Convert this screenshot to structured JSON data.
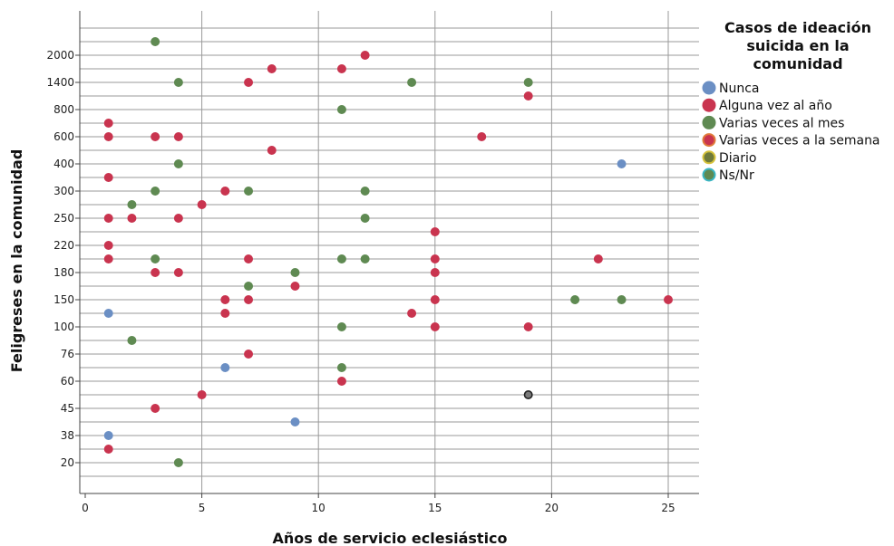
{
  "chart_data": {
    "type": "scatter",
    "xlabel": "Años de servicio eclesiástico",
    "ylabel": "Feligreses en la comunidad",
    "xlim": [
      0,
      26
    ],
    "x_ticks": [
      "0",
      "5",
      "10",
      "15",
      "20",
      "25"
    ],
    "y_scale": "categorical",
    "y_tick_labels": [
      "20",
      "38",
      "45",
      "60",
      "76",
      "100",
      "150",
      "180",
      "220",
      "250",
      "300",
      "400",
      "600",
      "800",
      "1400",
      "2000"
    ],
    "grid": true,
    "legend": {
      "position": "right",
      "title_lines": [
        "Casos de ideación",
        "suicida en la",
        "comunidad"
      ],
      "entries": [
        {
          "label": "Nunca",
          "fill": "#6b8fc4",
          "stroke": "#6b8fc4"
        },
        {
          "label": "Alguna vez al año",
          "fill": "#c9344f",
          "stroke": "#c9344f"
        },
        {
          "label": "Varias veces al mes",
          "fill": "#5f8a52",
          "stroke": "#5f8a52"
        },
        {
          "label": "Varias veces a la semana",
          "fill": "#c9344f",
          "stroke": "#e07a3a"
        },
        {
          "label": "Diario",
          "fill": "#6f7a3a",
          "stroke": "#d6c23a"
        },
        {
          "label": "Ns/Nr",
          "fill": "#5f8a52",
          "stroke": "#3ab6c4"
        }
      ]
    },
    "series": [
      {
        "name": "Nunca",
        "points": [
          {
            "x": 1,
            "y": 117
          },
          {
            "x": 1,
            "y": 38
          },
          {
            "x": 6,
            "y": 68
          },
          {
            "x": 9,
            "y": 41
          },
          {
            "x": 23,
            "y": 400
          }
        ]
      },
      {
        "name": "Alguna vez al año",
        "points": [
          {
            "x": 1,
            "y": 700
          },
          {
            "x": 1,
            "y": 600
          },
          {
            "x": 1,
            "y": 350
          },
          {
            "x": 1,
            "y": 250
          },
          {
            "x": 1,
            "y": 220
          },
          {
            "x": 1,
            "y": 200
          },
          {
            "x": 1,
            "y": 30
          },
          {
            "x": 2,
            "y": 250
          },
          {
            "x": 3,
            "y": 600
          },
          {
            "x": 3,
            "y": 180
          },
          {
            "x": 3,
            "y": 45
          },
          {
            "x": 4,
            "y": 600
          },
          {
            "x": 4,
            "y": 250
          },
          {
            "x": 4,
            "y": 180
          },
          {
            "x": 5,
            "y": 270
          },
          {
            "x": 5,
            "y": 52
          },
          {
            "x": 6,
            "y": 300
          },
          {
            "x": 6,
            "y": 150
          },
          {
            "x": 6,
            "y": 120
          },
          {
            "x": 7,
            "y": 1400
          },
          {
            "x": 7,
            "y": 200
          },
          {
            "x": 7,
            "y": 150
          },
          {
            "x": 7,
            "y": 75
          },
          {
            "x": 8,
            "y": 1700
          },
          {
            "x": 8,
            "y": 500
          },
          {
            "x": 9,
            "y": 160
          },
          {
            "x": 11,
            "y": 1700
          },
          {
            "x": 11,
            "y": 60
          },
          {
            "x": 12,
            "y": 2000
          },
          {
            "x": 14,
            "y": 120
          },
          {
            "x": 15,
            "y": 230
          },
          {
            "x": 15,
            "y": 200
          },
          {
            "x": 15,
            "y": 180
          },
          {
            "x": 15,
            "y": 150
          },
          {
            "x": 15,
            "y": 100
          },
          {
            "x": 17,
            "y": 600
          },
          {
            "x": 19,
            "y": 1100
          },
          {
            "x": 19,
            "y": 100
          },
          {
            "x": 22,
            "y": 200
          },
          {
            "x": 25,
            "y": 150
          }
        ]
      },
      {
        "name": "Varias veces al mes",
        "points": [
          {
            "x": 2,
            "y": 270
          },
          {
            "x": 2,
            "y": 85
          },
          {
            "x": 3,
            "y": 2500
          },
          {
            "x": 3,
            "y": 300
          },
          {
            "x": 3,
            "y": 200
          },
          {
            "x": 4,
            "y": 1400
          },
          {
            "x": 4,
            "y": 400
          },
          {
            "x": 4,
            "y": 20
          },
          {
            "x": 7,
            "y": 300
          },
          {
            "x": 7,
            "y": 160
          },
          {
            "x": 9,
            "y": 180
          },
          {
            "x": 11,
            "y": 800
          },
          {
            "x": 11,
            "y": 200
          },
          {
            "x": 11,
            "y": 100
          },
          {
            "x": 11,
            "y": 65
          },
          {
            "x": 12,
            "y": 300
          },
          {
            "x": 12,
            "y": 250
          },
          {
            "x": 12,
            "y": 200
          },
          {
            "x": 14,
            "y": 1400
          },
          {
            "x": 19,
            "y": 1400
          },
          {
            "x": 21,
            "y": 150
          },
          {
            "x": 23,
            "y": 150
          }
        ]
      },
      {
        "name": "Diario",
        "points": [
          {
            "x": 19,
            "y": 55
          }
        ]
      }
    ]
  }
}
